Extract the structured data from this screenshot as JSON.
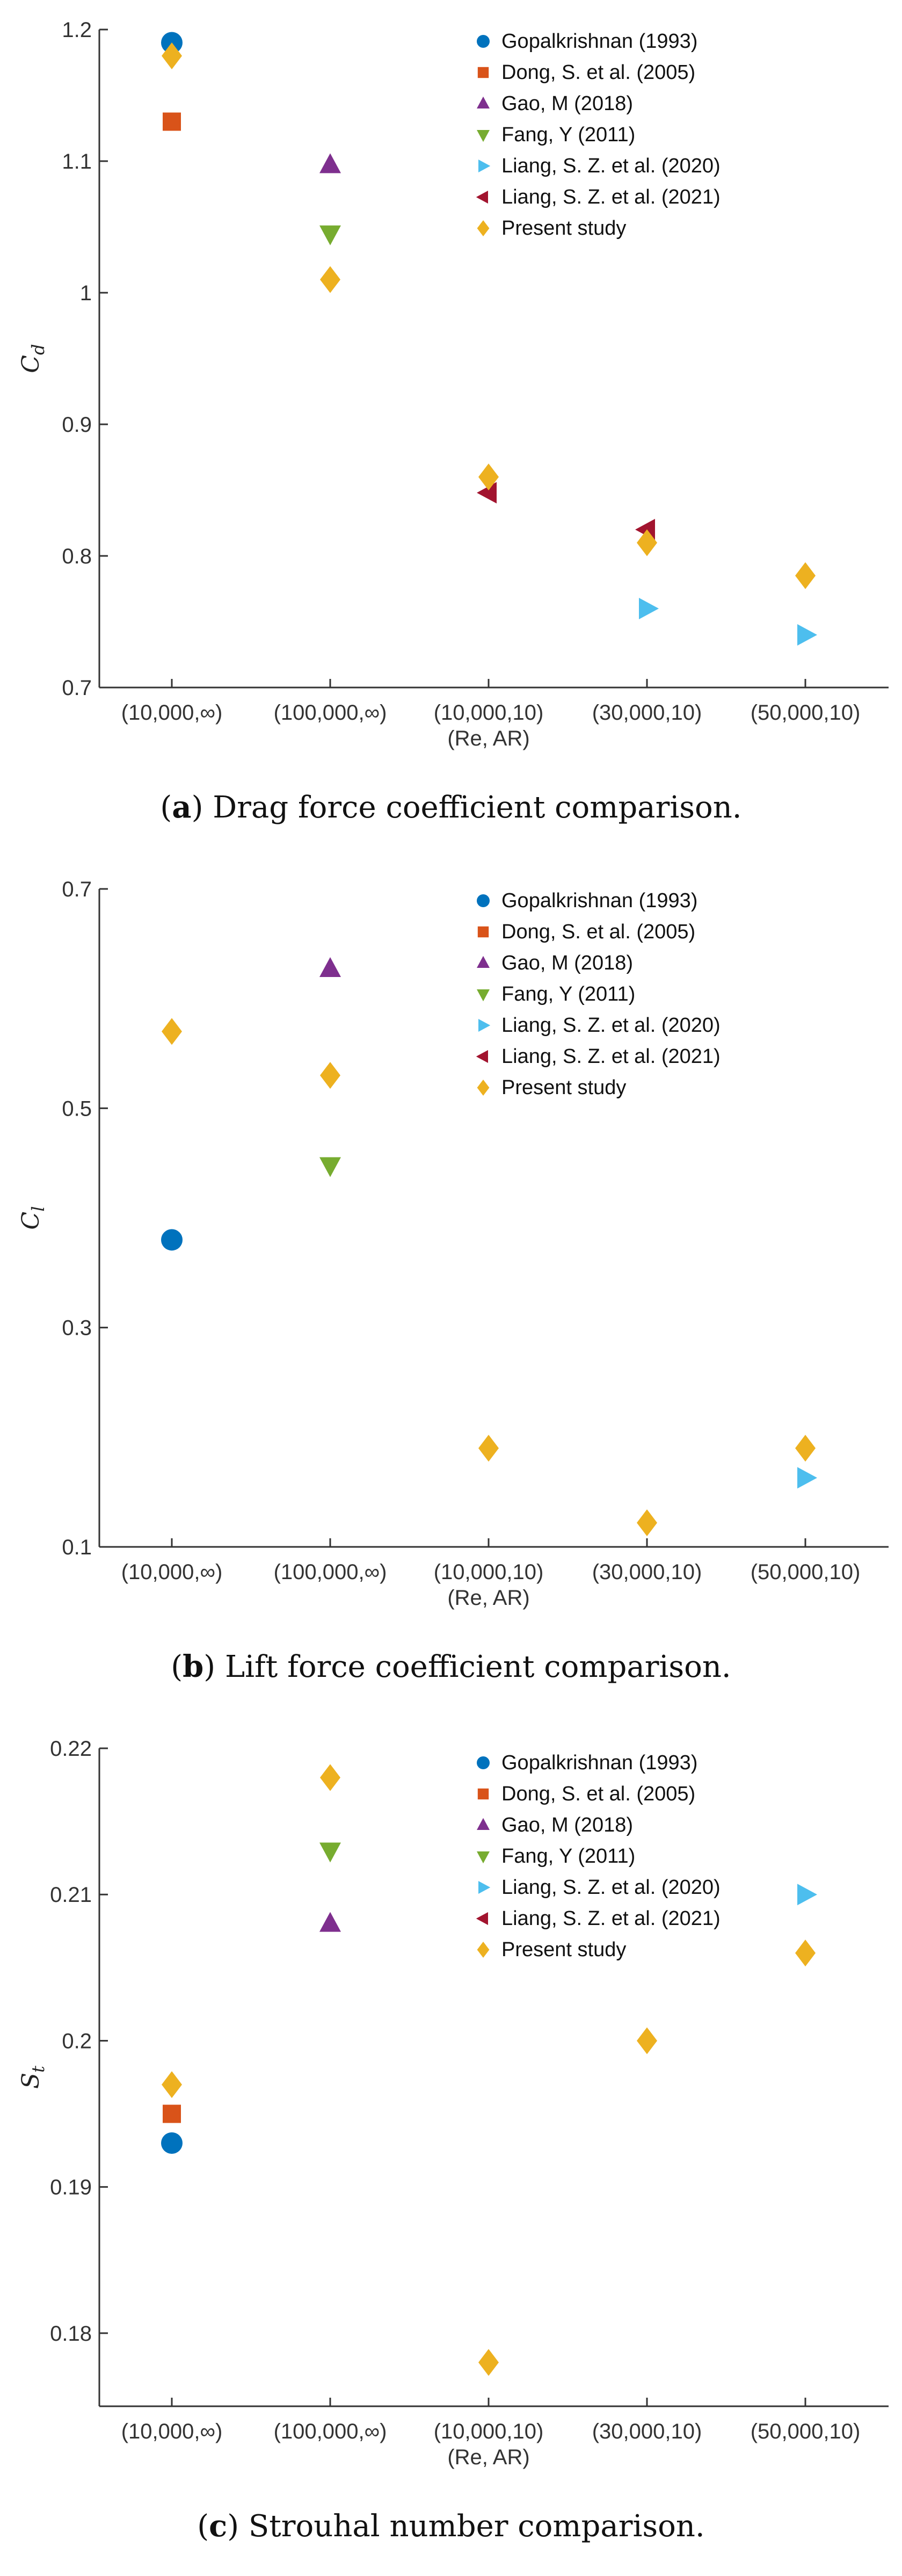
{
  "legend_labels": [
    "Gopalkrishnan (1993)",
    "Dong, S. et al. (2005)",
    "Gao, M (2018)",
    "Fang, Y (2011)",
    "Liang, S. Z. et al. (2020)",
    "Liang, S. Z. et al. (2021)",
    "Present study"
  ],
  "series_colors": [
    "#0072BD",
    "#D95319",
    "#7E2F8E",
    "#77AC30",
    "#4DBEEE",
    "#A2142F",
    "#EDB120"
  ],
  "series_markers": [
    "circle",
    "square",
    "triangle-up",
    "triangle-down",
    "triangle-right",
    "triangle-left",
    "diamond"
  ],
  "chart_data": [
    {
      "type": "scatter",
      "panel_letter": "a",
      "caption_text": " Drag force coefficient comparison.",
      "ylabel_main": "C",
      "ylabel_sub": "d",
      "xlabel": "(Re, AR)",
      "categories": [
        "(10,000,∞)",
        "(100,000,∞)",
        "(10,000,10)",
        "(30,000,10)",
        "(50,000,10)"
      ],
      "ylim": [
        0.7,
        1.2
      ],
      "yticks": [
        0.7,
        0.8,
        0.9,
        1,
        1.1,
        1.2
      ],
      "ytick_labels": [
        "0.7",
        "0.8",
        "0.9",
        "1",
        "1.1",
        "1.2"
      ],
      "legend": true,
      "series": [
        {
          "name": "Gopalkrishnan (1993)",
          "values": [
            1.19,
            null,
            null,
            null,
            null
          ]
        },
        {
          "name": "Dong, S. et al. (2005)",
          "values": [
            1.13,
            null,
            null,
            null,
            null
          ]
        },
        {
          "name": "Gao, M (2018)",
          "values": [
            null,
            1.097,
            null,
            null,
            null
          ]
        },
        {
          "name": "Fang, Y (2011)",
          "values": [
            null,
            1.045,
            null,
            null,
            null
          ]
        },
        {
          "name": "Liang, S. Z. et al. (2020)",
          "values": [
            null,
            null,
            null,
            0.76,
            0.74
          ]
        },
        {
          "name": "Liang, S. Z. et al. (2021)",
          "values": [
            null,
            null,
            0.848,
            0.82,
            null
          ]
        },
        {
          "name": "Present study",
          "values": [
            1.18,
            1.01,
            0.86,
            0.81,
            0.785
          ]
        }
      ]
    },
    {
      "type": "scatter",
      "panel_letter": "b",
      "caption_text": " Lift force coefficient comparison.",
      "ylabel_main": "C",
      "ylabel_sub": "l",
      "xlabel": "(Re, AR)",
      "categories": [
        "(10,000,∞)",
        "(100,000,∞)",
        "(10,000,10)",
        "(30,000,10)",
        "(50,000,10)"
      ],
      "ylim": [
        0.1,
        0.7
      ],
      "yticks": [
        0.1,
        0.3,
        0.5,
        0.7
      ],
      "ytick_labels": [
        "0.1",
        "0.3",
        "0.5",
        "0.7"
      ],
      "legend": true,
      "series": [
        {
          "name": "Gopalkrishnan (1993)",
          "values": [
            0.38,
            null,
            null,
            null,
            null
          ]
        },
        {
          "name": "Dong, S. et al. (2005)",
          "values": [
            null,
            null,
            null,
            null,
            null
          ]
        },
        {
          "name": "Gao, M (2018)",
          "values": [
            null,
            0.627,
            null,
            null,
            null
          ]
        },
        {
          "name": "Fang, Y (2011)",
          "values": [
            null,
            0.448,
            null,
            null,
            null
          ]
        },
        {
          "name": "Liang, S. Z. et al. (2020)",
          "values": [
            null,
            null,
            null,
            null,
            0.163
          ]
        },
        {
          "name": "Liang, S. Z. et al. (2021)",
          "values": [
            null,
            null,
            null,
            null,
            null
          ]
        },
        {
          "name": "Present study",
          "values": [
            0.57,
            0.53,
            0.19,
            0.122,
            0.19
          ]
        }
      ]
    },
    {
      "type": "scatter",
      "panel_letter": "c",
      "caption_text": " Strouhal number comparison.",
      "ylabel_main": "S",
      "ylabel_sub": "t",
      "xlabel": "(Re, AR)",
      "categories": [
        "(10,000,∞)",
        "(100,000,∞)",
        "(10,000,10)",
        "(30,000,10)",
        "(50,000,10)"
      ],
      "ylim": [
        0.175,
        0.22
      ],
      "yticks": [
        0.18,
        0.19,
        0.2,
        0.21,
        0.22
      ],
      "ytick_labels": [
        "0.18",
        "0.19",
        "0.2",
        "0.21",
        "0.22"
      ],
      "legend": true,
      "series": [
        {
          "name": "Gopalkrishnan (1993)",
          "values": [
            0.193,
            null,
            null,
            null,
            null
          ]
        },
        {
          "name": "Dong, S. et al. (2005)",
          "values": [
            0.195,
            null,
            null,
            null,
            null
          ]
        },
        {
          "name": "Gao, M (2018)",
          "values": [
            null,
            0.208,
            null,
            null,
            null
          ]
        },
        {
          "name": "Fang, Y (2011)",
          "values": [
            null,
            0.213,
            null,
            null,
            null
          ]
        },
        {
          "name": "Liang, S. Z. et al. (2020)",
          "values": [
            null,
            null,
            null,
            null,
            0.21
          ]
        },
        {
          "name": "Liang, S. Z. et al. (2021)",
          "values": [
            null,
            null,
            null,
            null,
            null
          ]
        },
        {
          "name": "Present study",
          "values": [
            0.197,
            0.218,
            0.178,
            0.2,
            0.206
          ]
        }
      ]
    }
  ]
}
